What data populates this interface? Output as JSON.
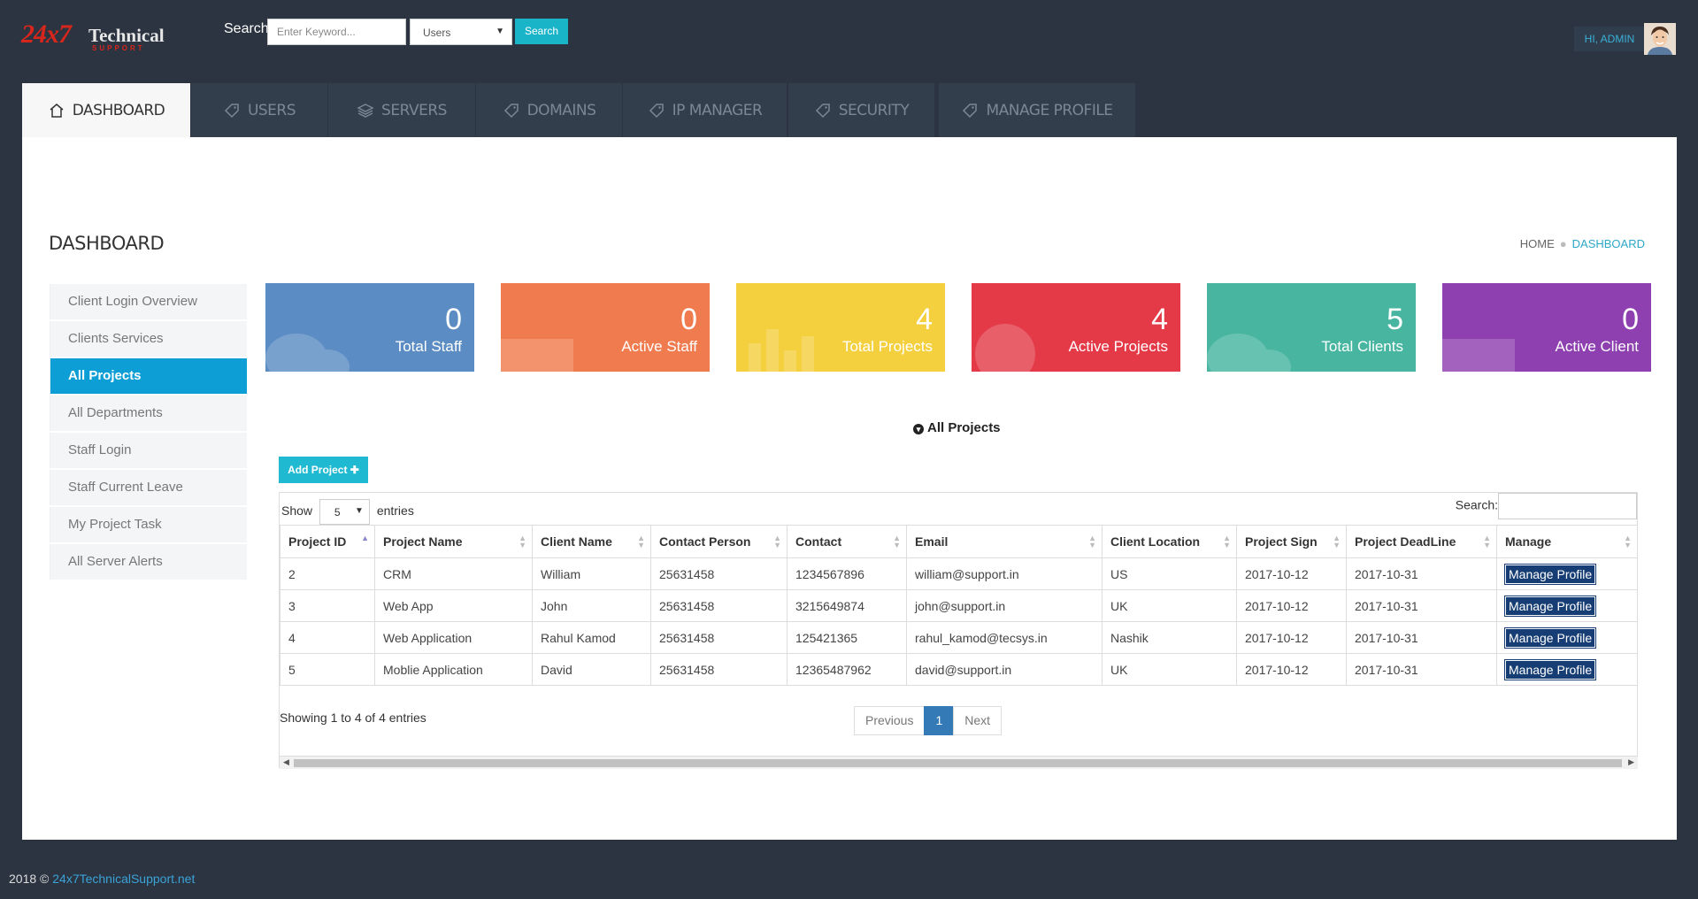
{
  "header": {
    "logo_num": "24x7",
    "logo_text": "Technical",
    "logo_sub": "SUPPORT",
    "search_label": "Search",
    "search_placeholder": "Enter Keyword...",
    "search_select": "Users",
    "search_button": "Search",
    "greeting": "HI, ADMIN"
  },
  "nav": {
    "tabs": [
      {
        "label": "DASHBOARD",
        "icon": "home-icon"
      },
      {
        "label": "USERS",
        "icon": "tag-icon"
      },
      {
        "label": "SERVERS",
        "icon": "layers-icon"
      },
      {
        "label": "DOMAINS",
        "icon": "tag-icon"
      },
      {
        "label": "IP MANAGER",
        "icon": "tag-icon"
      },
      {
        "label": "SECURITY",
        "icon": "tag-icon"
      },
      {
        "label": "MANAGE PROFILE",
        "icon": "tag-icon"
      }
    ]
  },
  "page": {
    "title": "DASHBOARD",
    "breadcrumb": [
      "HOME",
      "DASHBOARD"
    ]
  },
  "sidebar": {
    "items": [
      "Client Login Overview",
      "Clients Services",
      "All Projects",
      "All Departments",
      "Staff Login",
      "Staff Current Leave",
      "My Project Task",
      "All Server Alerts"
    ]
  },
  "cards": [
    {
      "value": "0",
      "label": "Total Staff",
      "color": "#5b8dc4"
    },
    {
      "value": "0",
      "label": "Active Staff",
      "color": "#f07b4e"
    },
    {
      "value": "4",
      "label": "Total Projects",
      "color": "#f4cf3e"
    },
    {
      "value": "4",
      "label": "Active Projects",
      "color": "#e43a48"
    },
    {
      "value": "5",
      "label": "Total Clients",
      "color": "#47b5a0"
    },
    {
      "value": "0",
      "label": "Active Client",
      "color": "#8e3fb0"
    }
  ],
  "projects": {
    "title": "All Projects",
    "add_button": "Add Project ✚",
    "show_label": "Show",
    "show_value": "5",
    "entries_label": "entries",
    "search_label": "Search:",
    "columns": [
      "Project ID",
      "Project Name",
      "Client Name",
      "Contact Person",
      "Contact",
      "Email",
      "Client Location",
      "Project Sign",
      "Project DeadLine",
      "Manage"
    ],
    "rows": [
      [
        "2",
        "CRM",
        "William",
        "25631458",
        "1234567896",
        "william@support.in",
        "US",
        "2017-10-12",
        "2017-10-31",
        "Manage Profile"
      ],
      [
        "3",
        "Web App",
        "John",
        "25631458",
        "3215649874",
        "john@support.in",
        "UK",
        "2017-10-12",
        "2017-10-31",
        "Manage Profile"
      ],
      [
        "4",
        "Web Application",
        "Rahul Kamod",
        "25631458",
        "125421365",
        "rahul_kamod@tecsys.in",
        "Nashik",
        "2017-10-12",
        "2017-10-31",
        "Manage Profile"
      ],
      [
        "5",
        "Moblie Application",
        "David",
        "25631458",
        "12365487962",
        "david@support.in",
        "UK",
        "2017-10-12",
        "2017-10-31",
        "Manage Profile"
      ]
    ],
    "showing": "Showing 1 to 4 of 4 entries",
    "pager": {
      "previous": "Previous",
      "current": "1",
      "next": "Next"
    }
  },
  "footer": {
    "copyright": "2018 ©",
    "link": "24x7TechnicalSupport.net"
  }
}
